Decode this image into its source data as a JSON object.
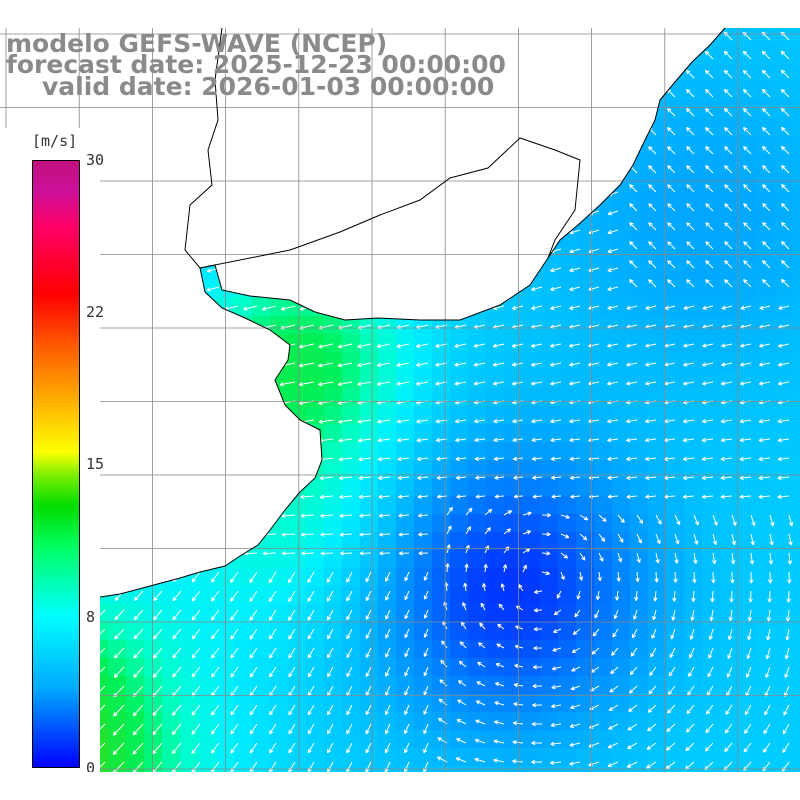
{
  "title": {
    "line1": "modelo GEFS-WAVE (NCEP)",
    "line2": "forecast date: 2025-12-23 00:00:00",
    "line3": "valid date: 2026-01-03 00:00:00"
  },
  "colorbar": {
    "unit": "[m/s]",
    "ticks": [
      "30",
      "22",
      "15",
      "8",
      "0"
    ],
    "min": 0,
    "max": 30
  },
  "map": {
    "variable": "wind speed",
    "arrow_color": "#ffffff",
    "grid_color": "#888888",
    "coast_color": "#000000",
    "low_wind_center": "dark blue calm area offshore",
    "colors": {
      "calm": "#0000ff",
      "moderate": "#0099ff",
      "breeze": "#00ddff",
      "strong": "#22dd55"
    }
  }
}
